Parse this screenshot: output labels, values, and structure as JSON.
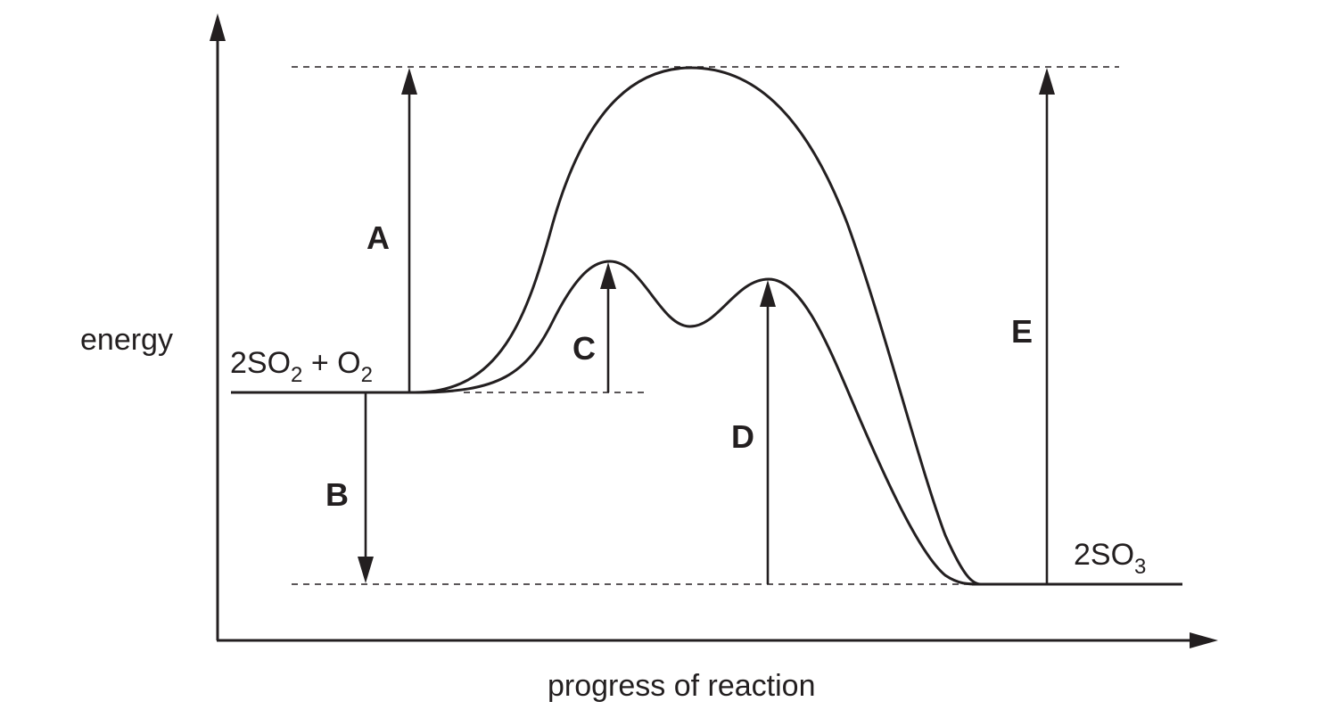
{
  "axes": {
    "y_label": "energy",
    "x_label": "progress of reaction"
  },
  "species": {
    "reactants": {
      "part1": "2SO",
      "sub1": "2",
      "part2": " + O",
      "sub2": "2"
    },
    "products": {
      "part1": "2SO",
      "sub1": "3"
    }
  },
  "labels": {
    "A": "A",
    "B": "B",
    "C": "C",
    "D": "D",
    "E": "E"
  }
}
